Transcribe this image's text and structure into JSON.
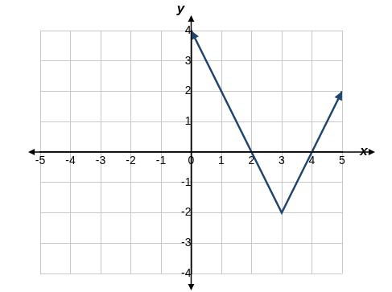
{
  "chart_data": {
    "type": "line",
    "xlabel": "x",
    "ylabel": "y",
    "x": [
      0,
      3,
      5
    ],
    "values": [
      4,
      -2,
      2
    ],
    "color": "#1f4570",
    "xlim": [
      -5,
      5
    ],
    "ylim": [
      -4,
      4
    ],
    "xticks": [
      -5,
      -4,
      -3,
      -2,
      -1,
      0,
      1,
      2,
      3,
      4,
      5
    ],
    "yticks": [
      -4,
      -3,
      -2,
      -1,
      1,
      2,
      3,
      4
    ],
    "grid": true
  }
}
